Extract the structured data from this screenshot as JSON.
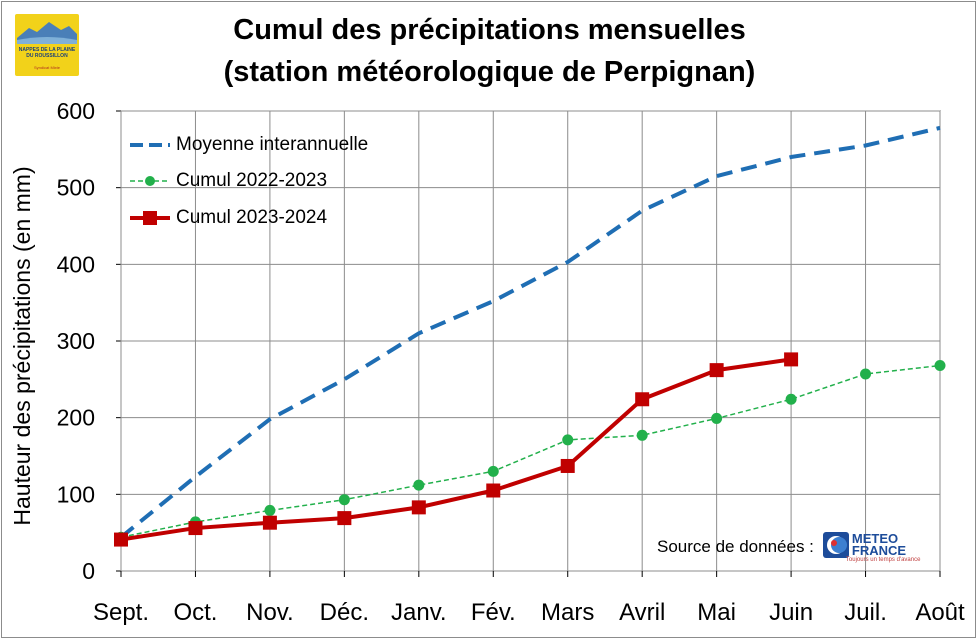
{
  "title_line1": "Cumul des précipitations mensuelles",
  "title_line2": "(station météorologique de Perpignan)",
  "logo": {
    "text": "NAPPES DE LA PLAINE DU ROUSSILLON",
    "subtext": "Syndicat Mixte"
  },
  "source": {
    "label": "Source de données :",
    "logo_line1": "METEO",
    "logo_line2": "FRANCE",
    "logo_tagline": "Toujours un temps d'avance"
  },
  "chart_data": {
    "type": "line",
    "title": "Cumul des précipitations mensuelles (station météorologique de Perpignan)",
    "xlabel": "",
    "ylabel": "Hauteur des précipitations (en mm)",
    "ylim": [
      0,
      600
    ],
    "yticks": [
      0,
      100,
      200,
      300,
      400,
      500,
      600
    ],
    "grid": true,
    "legend_position": "top-left",
    "categories": [
      "Sept.",
      "Oct.",
      "Nov.",
      "Déc.",
      "Janv.",
      "Fév.",
      "Mars",
      "Avril",
      "Mai",
      "Juin",
      "Juil.",
      "Août"
    ],
    "series": [
      {
        "name": "Moyenne interannuelle",
        "color": "#1f6eb4",
        "style": "dashed",
        "marker": "none",
        "values": [
          44,
          123,
          198,
          250,
          310,
          352,
          403,
          470,
          515,
          540,
          555,
          578
        ]
      },
      {
        "name": "Cumul 2022-2023",
        "color": "#22b04b",
        "style": "dashed",
        "marker": "circle",
        "values": [
          44,
          64,
          79,
          93,
          112,
          130,
          171,
          177,
          199,
          224,
          257,
          268
        ]
      },
      {
        "name": "Cumul 2023-2024",
        "color": "#c00000",
        "style": "solid",
        "marker": "square",
        "values": [
          41,
          56,
          63,
          69,
          83,
          105,
          137,
          224,
          262,
          276,
          null,
          null
        ]
      }
    ]
  }
}
